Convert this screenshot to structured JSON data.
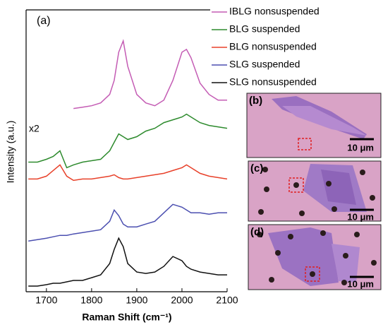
{
  "chart_data": {
    "type": "line",
    "xlabel": "Raman Shift (cm⁻¹)",
    "ylabel": "Intensity (a.u.)",
    "annotations": [
      "(a)",
      "x2"
    ],
    "legend": "right",
    "xlim": [
      1655,
      2100
    ],
    "xticks": [
      1700,
      1800,
      1900,
      2000,
      2100
    ],
    "ylim": [
      0,
      100
    ],
    "x": [
      1660,
      1680,
      1700,
      1715,
      1730,
      1745,
      1760,
      1780,
      1800,
      1820,
      1840,
      1850,
      1860,
      1870,
      1880,
      1900,
      1920,
      1940,
      1960,
      1980,
      2000,
      2010,
      2020,
      2040,
      2060,
      2080,
      2100
    ],
    "series": [
      {
        "name": "IBLG nonsuspended",
        "color": "#c45cb4",
        "values": [
          null,
          null,
          null,
          null,
          null,
          null,
          65,
          65.5,
          66,
          67,
          70,
          75,
          85,
          89,
          80,
          70,
          67,
          66,
          68,
          75,
          85,
          86,
          83,
          74,
          70,
          68,
          68
        ]
      },
      {
        "name": "BLG suspended",
        "color": "#2e8b2e",
        "values": [
          46,
          46,
          47,
          48,
          50,
          44,
          45,
          46,
          46.5,
          47,
          50,
          53,
          56,
          55,
          54,
          55,
          57,
          58,
          60,
          61,
          62,
          63,
          62,
          60,
          59,
          58.5,
          58
        ]
      },
      {
        "name": "BLG nonsuspended",
        "color": "#e8412a",
        "values": [
          40,
          40,
          41,
          43,
          45,
          41,
          39.5,
          40,
          40,
          40.5,
          41,
          41.5,
          40.5,
          40,
          40,
          40.5,
          41,
          41.5,
          42,
          43,
          44,
          45,
          44,
          42,
          41,
          40.5,
          40
        ]
      },
      {
        "name": "SLG suspended",
        "color": "#4b4fb0",
        "values": [
          18,
          18.5,
          19,
          19.5,
          20,
          20,
          20.5,
          21,
          21.5,
          22,
          25,
          29,
          27,
          24,
          23,
          23,
          24,
          25,
          28,
          31,
          30,
          29,
          28,
          28,
          27.5,
          28,
          28
        ]
      },
      {
        "name": "SLG nonsuspended",
        "color": "#111111",
        "values": [
          2,
          2,
          2.5,
          3,
          3,
          3.5,
          4,
          4,
          5,
          6,
          10,
          15,
          19,
          16,
          10,
          7,
          6.5,
          7,
          9,
          12.5,
          11,
          9,
          8,
          7,
          6.5,
          6,
          6
        ]
      }
    ]
  },
  "insets": [
    {
      "label": "(b)",
      "scale": "10 μm"
    },
    {
      "label": "(c)",
      "scale": "10 μm"
    },
    {
      "label": "(d)",
      "scale": "10 μm"
    }
  ]
}
